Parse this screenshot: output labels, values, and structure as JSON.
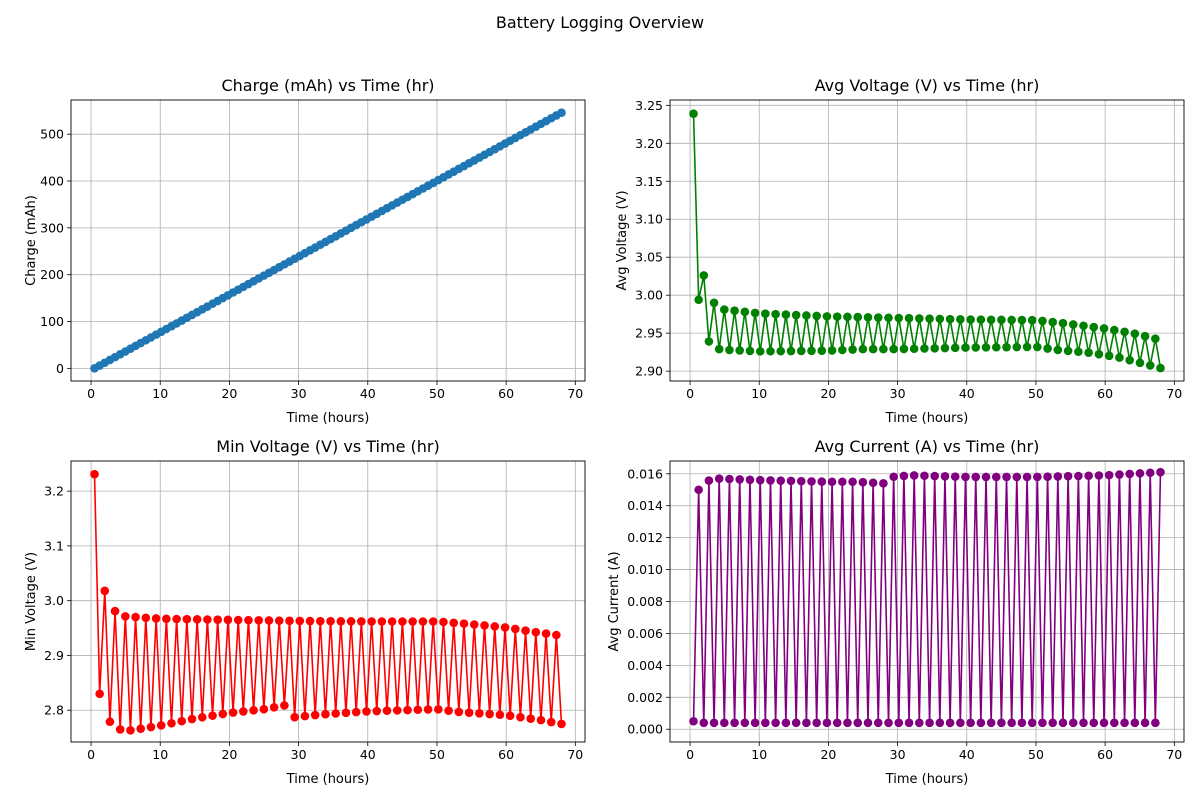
{
  "figure_title": "Battery Logging Overview",
  "chart_data": [
    {
      "type": "line",
      "title": "Charge (mAh) vs Time (hr)",
      "xlabel": "Time (hours)",
      "ylabel": "Charge (mAh)",
      "xlim": [
        -2.9,
        71.4
      ],
      "ylim": [
        -27,
        573
      ],
      "xticks": [
        0,
        10,
        20,
        30,
        40,
        50,
        60,
        70
      ],
      "yticks": [
        0,
        100,
        200,
        300,
        400,
        500
      ],
      "ytick_labels": [
        "0",
        "100",
        "200",
        "300",
        "400",
        "500"
      ],
      "grid": true,
      "color": "#1f77b4",
      "marker": "circle",
      "pattern": "linear",
      "series": [
        {
          "x_start": 0.5,
          "x_end": 68,
          "points": 92,
          "y_start": 0,
          "y_end": 546
        }
      ]
    },
    {
      "type": "line",
      "title": "Avg Voltage (V) vs Time (hr)",
      "xlabel": "Time (hours)",
      "ylabel": "Avg Voltage (V)",
      "xlim": [
        -2.9,
        71.4
      ],
      "ylim": [
        2.887,
        3.257
      ],
      "xticks": [
        0,
        10,
        20,
        30,
        40,
        50,
        60,
        70
      ],
      "yticks": [
        2.9,
        2.95,
        3.0,
        3.05,
        3.1,
        3.15,
        3.2,
        3.25
      ],
      "ytick_labels": [
        "2.90",
        "2.95",
        "3.00",
        "3.05",
        "3.10",
        "3.15",
        "3.20",
        "3.25"
      ],
      "grid": true,
      "color": "#008000",
      "marker": "circle",
      "pattern": "alternating",
      "series": [
        {
          "x_start": 0.5,
          "x_end": 68,
          "points": 92,
          "head_values": [
            3.239,
            2.994,
            3.026,
            2.939,
            2.99,
            2.929
          ],
          "high_envelope": [
            [
              3,
              2.983
            ],
            [
              10,
              2.976
            ],
            [
              20,
              2.972
            ],
            [
              30,
              2.97
            ],
            [
              40,
              2.968
            ],
            [
              50,
              2.967
            ],
            [
              55,
              2.962
            ],
            [
              60,
              2.956
            ],
            [
              64,
              2.95
            ],
            [
              68,
              2.941
            ]
          ],
          "low_envelope": [
            [
              3,
              2.929
            ],
            [
              10,
              2.926
            ],
            [
              20,
              2.927
            ],
            [
              25,
              2.929
            ],
            [
              30,
              2.929
            ],
            [
              40,
              2.931
            ],
            [
              50,
              2.932
            ],
            [
              53,
              2.928
            ],
            [
              58,
              2.924
            ],
            [
              62,
              2.918
            ],
            [
              68,
              2.904
            ]
          ]
        }
      ]
    },
    {
      "type": "line",
      "title": "Min Voltage (V) vs Time (hr)",
      "xlabel": "Time (hours)",
      "ylabel": "Min Voltage (V)",
      "xlim": [
        -2.9,
        71.4
      ],
      "ylim": [
        2.742,
        3.255
      ],
      "xticks": [
        0,
        10,
        20,
        30,
        40,
        50,
        60,
        70
      ],
      "yticks": [
        2.8,
        2.9,
        3.0,
        3.1,
        3.2
      ],
      "ytick_labels": [
        "2.8",
        "2.9",
        "3.0",
        "3.1",
        "3.2"
      ],
      "grid": true,
      "color": "#ff0000",
      "marker": "circle",
      "pattern": "alternating",
      "series": [
        {
          "x_start": 0.5,
          "x_end": 68,
          "points": 92,
          "head_values": [
            3.231,
            2.83,
            3.018,
            2.779,
            2.981,
            2.765
          ],
          "high_envelope": [
            [
              3,
              2.973
            ],
            [
              10,
              2.967
            ],
            [
              20,
              2.965
            ],
            [
              30,
              2.963
            ],
            [
              40,
              2.962
            ],
            [
              50,
              2.962
            ],
            [
              55,
              2.957
            ],
            [
              60,
              2.951
            ],
            [
              64,
              2.943
            ],
            [
              68,
              2.936
            ]
          ],
          "low_envelope": [
            [
              3,
              2.765
            ],
            [
              5,
              2.762
            ],
            [
              10,
              2.772
            ],
            [
              15,
              2.785
            ],
            [
              20,
              2.795
            ],
            [
              25,
              2.802
            ],
            [
              28.5,
              2.81
            ],
            [
              29.2,
              2.787
            ],
            [
              33,
              2.792
            ],
            [
              40,
              2.798
            ],
            [
              50,
              2.802
            ],
            [
              53,
              2.797
            ],
            [
              60,
              2.791
            ],
            [
              65,
              2.782
            ],
            [
              68,
              2.775
            ]
          ]
        }
      ]
    },
    {
      "type": "line",
      "title": "Avg Current (A) vs Time (hr)",
      "xlabel": "Time (hours)",
      "ylabel": "Avg Current (A)",
      "xlim": [
        -2.9,
        71.4
      ],
      "ylim": [
        -0.0008,
        0.0168
      ],
      "xticks": [
        0,
        10,
        20,
        30,
        40,
        50,
        60,
        70
      ],
      "yticks": [
        0.0,
        0.002,
        0.004,
        0.006,
        0.008,
        0.01,
        0.012,
        0.014,
        0.016
      ],
      "ytick_labels": [
        "0.000",
        "0.002",
        "0.004",
        "0.006",
        "0.008",
        "0.010",
        "0.012",
        "0.014",
        "0.016"
      ],
      "grid": true,
      "color": "#800080",
      "marker": "circle",
      "pattern": "alternating",
      "series": [
        {
          "x_start": 0.5,
          "x_end": 68,
          "points": 92,
          "head_values": [
            0.0005,
            0.015
          ],
          "high_envelope": [
            [
              2,
              0.0155
            ],
            [
              4,
              0.0157
            ],
            [
              10,
              0.0156
            ],
            [
              20,
              0.0155
            ],
            [
              24,
              0.0155
            ],
            [
              28,
              0.0154
            ],
            [
              29,
              0.0158
            ],
            [
              32,
              0.0159
            ],
            [
              40,
              0.0158
            ],
            [
              50,
              0.0158
            ],
            [
              60,
              0.0159
            ],
            [
              68,
              0.0161
            ]
          ],
          "low_envelope": [
            [
              2,
              0.0004
            ],
            [
              68,
              0.0004
            ]
          ]
        }
      ]
    }
  ]
}
